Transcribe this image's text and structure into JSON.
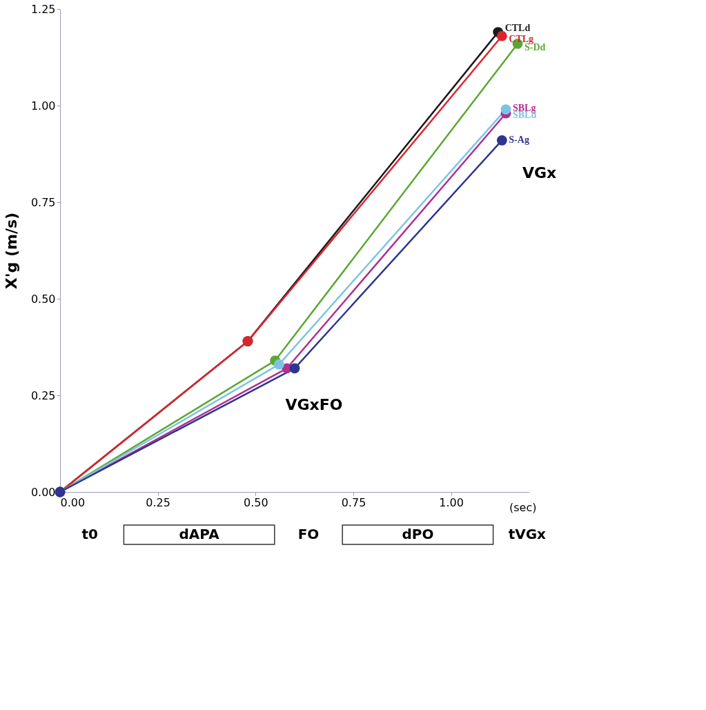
{
  "chart_data": {
    "type": "line",
    "ylabel": "X'g (m/s)",
    "xlabel": "(sec)",
    "xlim": [
      0,
      1.2
    ],
    "ylim": [
      0,
      1.25
    ],
    "xticks": [
      {
        "value": 0,
        "label": "0.00"
      },
      {
        "value": 0.25,
        "label": "0.25"
      },
      {
        "value": 0.5,
        "label": "0.50"
      },
      {
        "value": 0.75,
        "label": "0.75"
      },
      {
        "value": 1,
        "label": "1.00"
      }
    ],
    "yticks": [
      {
        "value": 0,
        "label": "0.00"
      },
      {
        "value": 0.25,
        "label": "0.25"
      },
      {
        "value": 0.5,
        "label": "0.50"
      },
      {
        "value": 0.75,
        "label": "0.75"
      },
      {
        "value": 1,
        "label": "1.00"
      },
      {
        "value": 1.25,
        "label": "1.25"
      }
    ],
    "grid": false,
    "legend": false,
    "marker": "circle",
    "series": [
      {
        "name": "CTLd",
        "color": "#1a1a1a",
        "x": [
          0,
          0.48,
          1.12
        ],
        "values": [
          0,
          0.39,
          1.19
        ]
      },
      {
        "name": "CTLg",
        "color": "#d9262e",
        "x": [
          0,
          0.48,
          1.13
        ],
        "values": [
          0,
          0.39,
          1.18
        ]
      },
      {
        "name": "S-Dd",
        "color": "#5aa832",
        "x": [
          0,
          0.55,
          1.17
        ],
        "values": [
          0,
          0.34,
          1.16
        ]
      },
      {
        "name": "SBLg",
        "color": "#b0308f",
        "x": [
          0,
          0.58,
          1.14
        ],
        "values": [
          0,
          0.32,
          0.98
        ]
      },
      {
        "name": "SBLd",
        "color": "#7ec3e6",
        "x": [
          0,
          0.56,
          1.14
        ],
        "values": [
          0,
          0.33,
          0.99
        ]
      },
      {
        "name": "S-Ag",
        "color": "#2e3590",
        "x": [
          0,
          0.6,
          1.13
        ],
        "values": [
          0,
          0.32,
          0.91
        ]
      }
    ],
    "annotations": [
      "VGxFO",
      "VGx",
      "t0",
      "dAPA",
      "FO",
      "dPO",
      "tVGx"
    ]
  }
}
